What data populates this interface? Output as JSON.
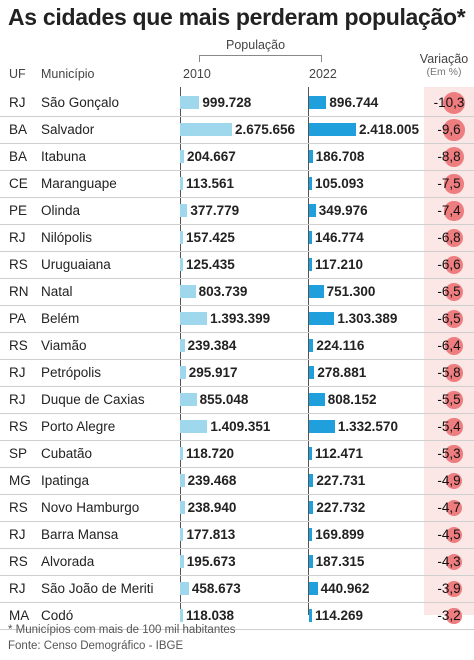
{
  "title": "As cidades que mais perderam população*",
  "headers": {
    "uf": "UF",
    "municipio": "Município",
    "populacao": "População",
    "y2010": "2010",
    "y2022": "2022",
    "variacao": "Variação",
    "variacao_unit": "(Em %)"
  },
  "chart_data": {
    "type": "table",
    "columns": [
      "UF",
      "Município",
      "2010",
      "2022",
      "Variação"
    ],
    "colors": {
      "bar_2010": "#9fd8ec",
      "bar_2022": "#1fa0dc",
      "variation_circle": "#ee7d80",
      "variation_column_bg": "#fbe7e6"
    },
    "rows": [
      {
        "uf": "RJ",
        "city": "São Gonçalo",
        "pop2010": 999728,
        "pop2010_label": "999.728",
        "pop2022": 896744,
        "pop2022_label": "896.744",
        "var": -10.3,
        "var_label": "-10,3"
      },
      {
        "uf": "BA",
        "city": "Salvador",
        "pop2010": 2675656,
        "pop2010_label": "2.675.656",
        "pop2022": 2418005,
        "pop2022_label": "2.418.005",
        "var": -9.6,
        "var_label": "-9,6"
      },
      {
        "uf": "BA",
        "city": "Itabuna",
        "pop2010": 204667,
        "pop2010_label": "204.667",
        "pop2022": 186708,
        "pop2022_label": "186.708",
        "var": -8.8,
        "var_label": "-8,8"
      },
      {
        "uf": "CE",
        "city": "Maranguape",
        "pop2010": 113561,
        "pop2010_label": "113.561",
        "pop2022": 105093,
        "pop2022_label": "105.093",
        "var": -7.5,
        "var_label": "-7,5"
      },
      {
        "uf": "PE",
        "city": "Olinda",
        "pop2010": 377779,
        "pop2010_label": "377.779",
        "pop2022": 349976,
        "pop2022_label": "349.976",
        "var": -7.4,
        "var_label": "-7,4"
      },
      {
        "uf": "RJ",
        "city": "Nilópolis",
        "pop2010": 157425,
        "pop2010_label": "157.425",
        "pop2022": 146774,
        "pop2022_label": "146.774",
        "var": -6.8,
        "var_label": "-6,8"
      },
      {
        "uf": "RS",
        "city": "Uruguaiana",
        "pop2010": 125435,
        "pop2010_label": "125.435",
        "pop2022": 117210,
        "pop2022_label": "117.210",
        "var": -6.6,
        "var_label": "-6,6"
      },
      {
        "uf": "RN",
        "city": "Natal",
        "pop2010": 803739,
        "pop2010_label": "803.739",
        "pop2022": 751300,
        "pop2022_label": "751.300",
        "var": -6.5,
        "var_label": "-6,5"
      },
      {
        "uf": "PA",
        "city": "Belém",
        "pop2010": 1393399,
        "pop2010_label": "1.393.399",
        "pop2022": 1303389,
        "pop2022_label": "1.303.389",
        "var": -6.5,
        "var_label": "-6,5"
      },
      {
        "uf": "RS",
        "city": "Viamão",
        "pop2010": 239384,
        "pop2010_label": "239.384",
        "pop2022": 224116,
        "pop2022_label": "224.116",
        "var": -6.4,
        "var_label": "-6,4"
      },
      {
        "uf": "RJ",
        "city": "Petrópolis",
        "pop2010": 295917,
        "pop2010_label": "295.917",
        "pop2022": 278881,
        "pop2022_label": "278.881",
        "var": -5.8,
        "var_label": "-5,8"
      },
      {
        "uf": "RJ",
        "city": "Duque de Caxias",
        "pop2010": 855048,
        "pop2010_label": "855.048",
        "pop2022": 808152,
        "pop2022_label": "808.152",
        "var": -5.5,
        "var_label": "-5,5"
      },
      {
        "uf": "RS",
        "city": "Porto Alegre",
        "pop2010": 1409351,
        "pop2010_label": "1.409.351",
        "pop2022": 1332570,
        "pop2022_label": "1.332.570",
        "var": -5.4,
        "var_label": "-5,4"
      },
      {
        "uf": "SP",
        "city": "Cubatão",
        "pop2010": 118720,
        "pop2010_label": "118.720",
        "pop2022": 112471,
        "pop2022_label": "112.471",
        "var": -5.3,
        "var_label": "-5,3"
      },
      {
        "uf": "MG",
        "city": "Ipatinga",
        "pop2010": 239468,
        "pop2010_label": "239.468",
        "pop2022": 227731,
        "pop2022_label": "227.731",
        "var": -4.9,
        "var_label": "-4,9"
      },
      {
        "uf": "RS",
        "city": "Novo Hamburgo",
        "pop2010": 238940,
        "pop2010_label": "238.940",
        "pop2022": 227732,
        "pop2022_label": "227.732",
        "var": -4.7,
        "var_label": "-4,7"
      },
      {
        "uf": "RJ",
        "city": "Barra Mansa",
        "pop2010": 177813,
        "pop2010_label": "177.813",
        "pop2022": 169899,
        "pop2022_label": "169.899",
        "var": -4.5,
        "var_label": "-4,5"
      },
      {
        "uf": "RS",
        "city": "Alvorada",
        "pop2010": 195673,
        "pop2010_label": "195.673",
        "pop2022": 187315,
        "pop2022_label": "187.315",
        "var": -4.3,
        "var_label": "-4,3"
      },
      {
        "uf": "RJ",
        "city": "São João de Meriti",
        "pop2010": 458673,
        "pop2010_label": "458.673",
        "pop2022": 440962,
        "pop2022_label": "440.962",
        "var": -3.9,
        "var_label": "-3,9"
      },
      {
        "uf": "MA",
        "city": "Codó",
        "pop2010": 118038,
        "pop2010_label": "118.038",
        "pop2022": 114269,
        "pop2022_label": "114.269",
        "var": -3.2,
        "var_label": "-3,2"
      }
    ]
  },
  "footnotes": {
    "note": "* Municípios com mais de 100 mil habitantes",
    "source": "Fonte: Censo Demográfico - IBGE"
  }
}
